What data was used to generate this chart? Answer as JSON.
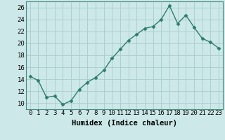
{
  "x": [
    0,
    1,
    2,
    3,
    4,
    5,
    6,
    7,
    8,
    9,
    10,
    11,
    12,
    13,
    14,
    15,
    16,
    17,
    18,
    19,
    20,
    21,
    22,
    23
  ],
  "y": [
    14.5,
    13.8,
    11.0,
    11.2,
    9.8,
    10.4,
    12.3,
    13.5,
    14.3,
    15.5,
    17.5,
    19.0,
    20.5,
    21.5,
    22.5,
    22.8,
    24.0,
    26.3,
    23.3,
    24.7,
    22.7,
    20.8,
    20.2,
    19.2
  ],
  "line_color": "#2e7d6e",
  "marker": "D",
  "markersize": 2.5,
  "bg_color": "#cce8e8",
  "grid_color": "#aacccc",
  "xlabel": "Humidex (Indice chaleur)",
  "ylim": [
    9,
    27
  ],
  "yticks": [
    10,
    12,
    14,
    16,
    18,
    20,
    22,
    24,
    26
  ],
  "xlim": [
    -0.5,
    23.5
  ],
  "xticks": [
    0,
    1,
    2,
    3,
    4,
    5,
    6,
    7,
    8,
    9,
    10,
    11,
    12,
    13,
    14,
    15,
    16,
    17,
    18,
    19,
    20,
    21,
    22,
    23
  ],
  "xlabel_fontsize": 7.5,
  "tick_fontsize": 6.5,
  "linewidth": 1.0
}
